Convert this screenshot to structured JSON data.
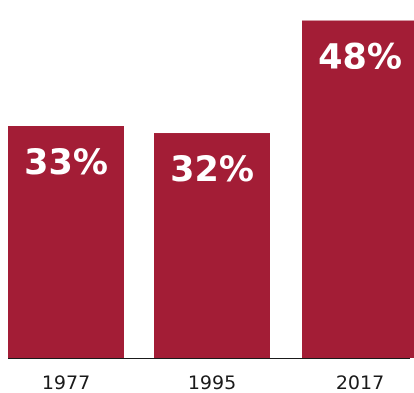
{
  "chart_data": {
    "type": "bar",
    "categories": [
      "1977",
      "1995",
      "2017"
    ],
    "values": [
      33,
      32,
      48
    ],
    "data_labels": [
      "33%",
      "32%",
      "48%"
    ],
    "title": "",
    "xlabel": "",
    "ylabel": "",
    "ylim": [
      0,
      49.5
    ],
    "grid": false,
    "legend": "none",
    "bar_color": "#a31d36",
    "label_color": "#ffffff",
    "axis_color": "#1a1a1a"
  }
}
